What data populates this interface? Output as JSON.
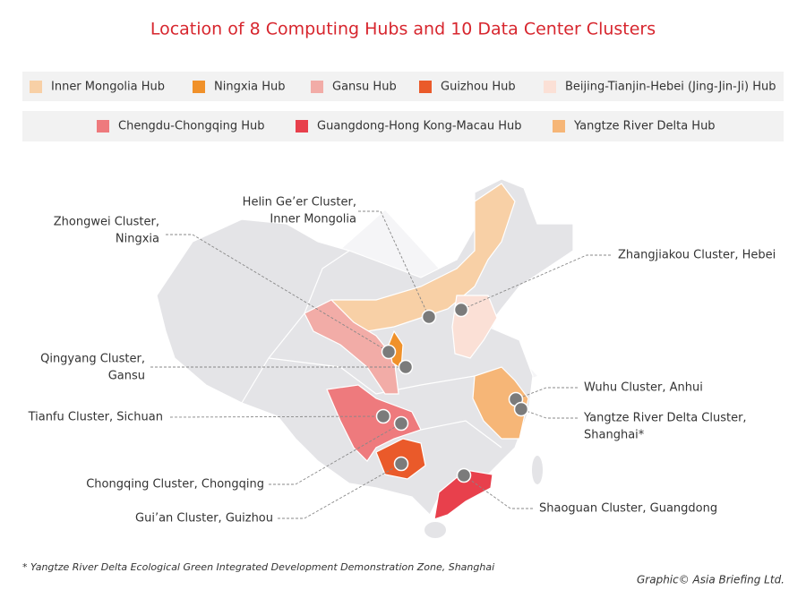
{
  "title": "Location of 8 Computing Hubs and 10 Data Center Clusters",
  "legend": [
    {
      "name": "Inner Mongolia Hub",
      "color": "#f8d0a6"
    },
    {
      "name": "Ningxia Hub",
      "color": "#f0912a"
    },
    {
      "name": "Gansu Hub",
      "color": "#f2aca7"
    },
    {
      "name": "Guizhou Hub",
      "color": "#ea5a2a"
    },
    {
      "name": "Beijing-Tianjin-Hebei (Jing-Jin-Ji) Hub",
      "color": "#fbe0d6"
    },
    {
      "name": "Chengdu-Chongqing Hub",
      "color": "#ee7a7d"
    },
    {
      "name": "Guangdong-Hong Kong-Macau Hub",
      "color": "#e8404c"
    },
    {
      "name": "Yangtze River Delta Hub",
      "color": "#f6b677"
    }
  ],
  "clusters": [
    {
      "lines": [
        "Helin Ge’er Cluster,",
        "Inner Mongolia"
      ]
    },
    {
      "lines": [
        "Zhongwei Cluster,",
        "Ningxia"
      ]
    },
    {
      "lines": [
        "Zhangjiakou Cluster, Hebei"
      ]
    },
    {
      "lines": [
        "Qingyang Cluster,",
        "Gansu"
      ]
    },
    {
      "lines": [
        "Tianfu Cluster, Sichuan"
      ]
    },
    {
      "lines": [
        "Wuhu Cluster, Anhui"
      ]
    },
    {
      "lines": [
        "Yangtze River Delta Cluster,",
        "Shanghai*"
      ]
    },
    {
      "lines": [
        "Chongqing Cluster, Chongqing"
      ]
    },
    {
      "lines": [
        "Gui’an Cluster, Guizhou"
      ]
    },
    {
      "lines": [
        "Shaoguan Cluster, Guangdong"
      ]
    }
  ],
  "footnote": "* Yangtze River Delta Ecological Green Integrated Development Demonstration Zone, Shanghai",
  "credit": "Graphic© Asia Briefing Ltd."
}
